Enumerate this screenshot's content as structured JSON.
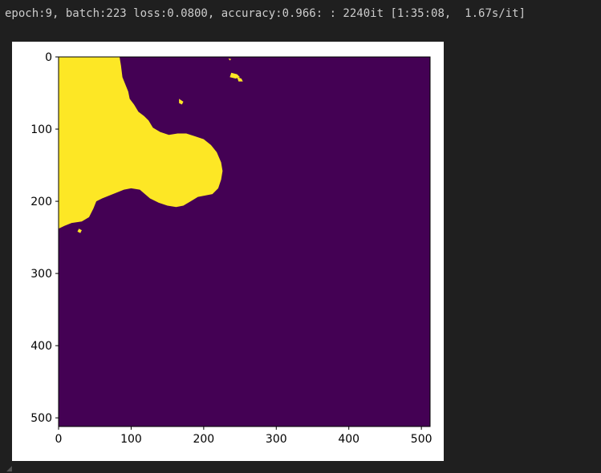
{
  "output": {
    "log_text": "epoch:9, batch:223 loss:0.0800, accuracy:0.966: : 2240it [1:35:08,  1.67s/it]"
  },
  "chart_data": {
    "type": "heatmap",
    "title": "",
    "xlabel": "",
    "ylabel": "",
    "xlim": [
      0,
      512
    ],
    "ylim": [
      512,
      0
    ],
    "x_ticks": [
      0,
      100,
      200,
      300,
      400,
      500
    ],
    "y_ticks": [
      0,
      100,
      200,
      300,
      400,
      500
    ],
    "x_tick_labels": [
      "0",
      "100",
      "200",
      "300",
      "400",
      "500"
    ],
    "y_tick_labels": [
      "0",
      "100",
      "200",
      "300",
      "400",
      "500"
    ],
    "colormap": "viridis",
    "classes": [
      {
        "value": 0,
        "color": "#440154"
      },
      {
        "value": 1,
        "color": "#fde725"
      }
    ],
    "regions": [
      {
        "value": 1,
        "polygon": [
          [
            0,
            0
          ],
          [
            84,
            0
          ],
          [
            86,
            12
          ],
          [
            88,
            28
          ],
          [
            92,
            38
          ],
          [
            96,
            48
          ],
          [
            98,
            58
          ],
          [
            104,
            66
          ],
          [
            110,
            76
          ],
          [
            118,
            82
          ],
          [
            124,
            88
          ],
          [
            130,
            98
          ],
          [
            140,
            104
          ],
          [
            152,
            108
          ],
          [
            164,
            106
          ],
          [
            176,
            106
          ],
          [
            188,
            110
          ],
          [
            200,
            114
          ],
          [
            210,
            122
          ],
          [
            218,
            132
          ],
          [
            224,
            146
          ],
          [
            226,
            158
          ],
          [
            224,
            170
          ],
          [
            220,
            182
          ],
          [
            212,
            190
          ],
          [
            202,
            192
          ],
          [
            192,
            194
          ],
          [
            182,
            200
          ],
          [
            172,
            206
          ],
          [
            162,
            208
          ],
          [
            150,
            206
          ],
          [
            138,
            202
          ],
          [
            126,
            196
          ],
          [
            112,
            184
          ],
          [
            100,
            182
          ],
          [
            90,
            184
          ],
          [
            80,
            188
          ],
          [
            70,
            192
          ],
          [
            60,
            196
          ],
          [
            52,
            200
          ],
          [
            48,
            210
          ],
          [
            42,
            222
          ],
          [
            32,
            228
          ],
          [
            18,
            230
          ],
          [
            8,
            234
          ],
          [
            0,
            238
          ]
        ]
      },
      {
        "value": 1,
        "polygon": [
          [
            238,
            22
          ],
          [
            246,
            24
          ],
          [
            250,
            28
          ],
          [
            244,
            30
          ],
          [
            236,
            28
          ]
        ]
      },
      {
        "value": 1,
        "polygon": [
          [
            246,
            28
          ],
          [
            252,
            30
          ],
          [
            254,
            34
          ],
          [
            248,
            34
          ]
        ]
      },
      {
        "value": 1,
        "polygon": [
          [
            166,
            58
          ],
          [
            172,
            62
          ],
          [
            170,
            66
          ],
          [
            166,
            64
          ]
        ]
      },
      {
        "value": 1,
        "polygon": [
          [
            28,
            238
          ],
          [
            32,
            240
          ],
          [
            30,
            244
          ],
          [
            26,
            242
          ]
        ]
      },
      {
        "value": 1,
        "polygon": [
          [
            234,
            2
          ],
          [
            238,
            3
          ],
          [
            236,
            5
          ]
        ]
      }
    ]
  }
}
